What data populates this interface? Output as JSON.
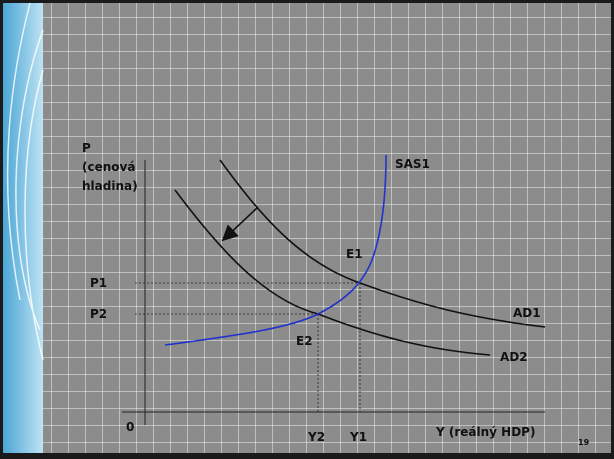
{
  "axis": {
    "y_label": [
      "P",
      "(cenová",
      "hladina)"
    ],
    "origin": "0",
    "x_label": "Y (reálný HDP)"
  },
  "curves": {
    "sas": "SAS1",
    "ad1": "AD1",
    "ad2": "AD2"
  },
  "points": {
    "e1": "E1",
    "e2": "E2"
  },
  "levels": {
    "p1": "P1",
    "p2": "P2",
    "y1": "Y1",
    "y2": "Y2"
  },
  "page_number": "19"
}
